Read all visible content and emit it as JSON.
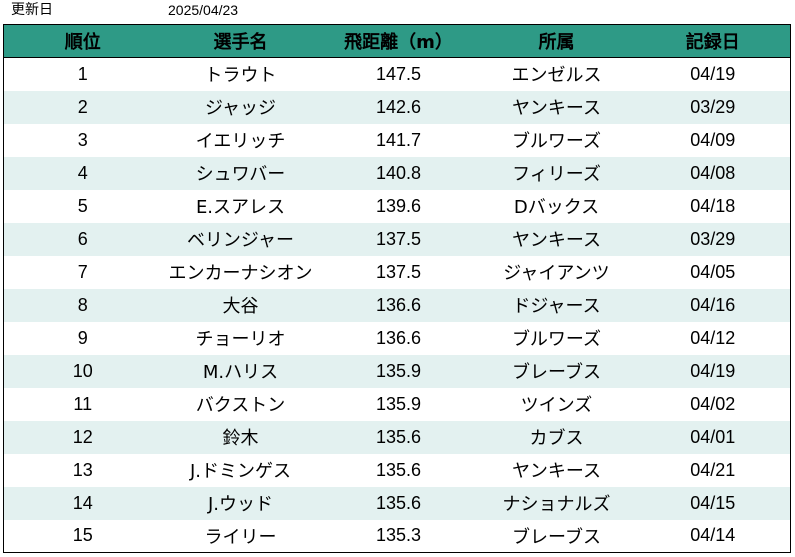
{
  "header": {
    "updated_label": "更新日",
    "updated_date": "2025/04/23"
  },
  "table": {
    "header_color": "#2e9a86",
    "stripe_color": "#e3f1f0",
    "columns": [
      "順位",
      "選手名",
      "飛距離（m）",
      "所属",
      "記録日"
    ],
    "rows": [
      {
        "rank": "1",
        "name": "トラウト",
        "distance": "147.5",
        "team": "エンゼルス",
        "date": "04/19"
      },
      {
        "rank": "2",
        "name": "ジャッジ",
        "distance": "142.6",
        "team": "ヤンキース",
        "date": "03/29"
      },
      {
        "rank": "3",
        "name": "イエリッチ",
        "distance": "141.7",
        "team": "ブルワーズ",
        "date": "04/09"
      },
      {
        "rank": "4",
        "name": "シュワバー",
        "distance": "140.8",
        "team": "フィリーズ",
        "date": "04/08"
      },
      {
        "rank": "5",
        "name": "E.スアレス",
        "distance": "139.6",
        "team": "Dバックス",
        "date": "04/18"
      },
      {
        "rank": "6",
        "name": "ベリンジャー",
        "distance": "137.5",
        "team": "ヤンキース",
        "date": "03/29"
      },
      {
        "rank": "7",
        "name": "エンカーナシオン",
        "distance": "137.5",
        "team": "ジャイアンツ",
        "date": "04/05"
      },
      {
        "rank": "8",
        "name": "大谷",
        "distance": "136.6",
        "team": "ドジャース",
        "date": "04/16"
      },
      {
        "rank": "9",
        "name": "チョーリオ",
        "distance": "136.6",
        "team": "ブルワーズ",
        "date": "04/12"
      },
      {
        "rank": "10",
        "name": "M.ハリス",
        "distance": "135.9",
        "team": "ブレーブス",
        "date": "04/19"
      },
      {
        "rank": "11",
        "name": "バクストン",
        "distance": "135.9",
        "team": "ツインズ",
        "date": "04/02"
      },
      {
        "rank": "12",
        "name": "鈴木",
        "distance": "135.6",
        "team": "カブス",
        "date": "04/01"
      },
      {
        "rank": "13",
        "name": "J.ドミンゲス",
        "distance": "135.6",
        "team": "ヤンキース",
        "date": "04/21"
      },
      {
        "rank": "14",
        "name": "J.ウッド",
        "distance": "135.6",
        "team": "ナショナルズ",
        "date": "04/15"
      },
      {
        "rank": "15",
        "name": "ライリー",
        "distance": "135.3",
        "team": "ブレーブス",
        "date": "04/14"
      }
    ]
  }
}
